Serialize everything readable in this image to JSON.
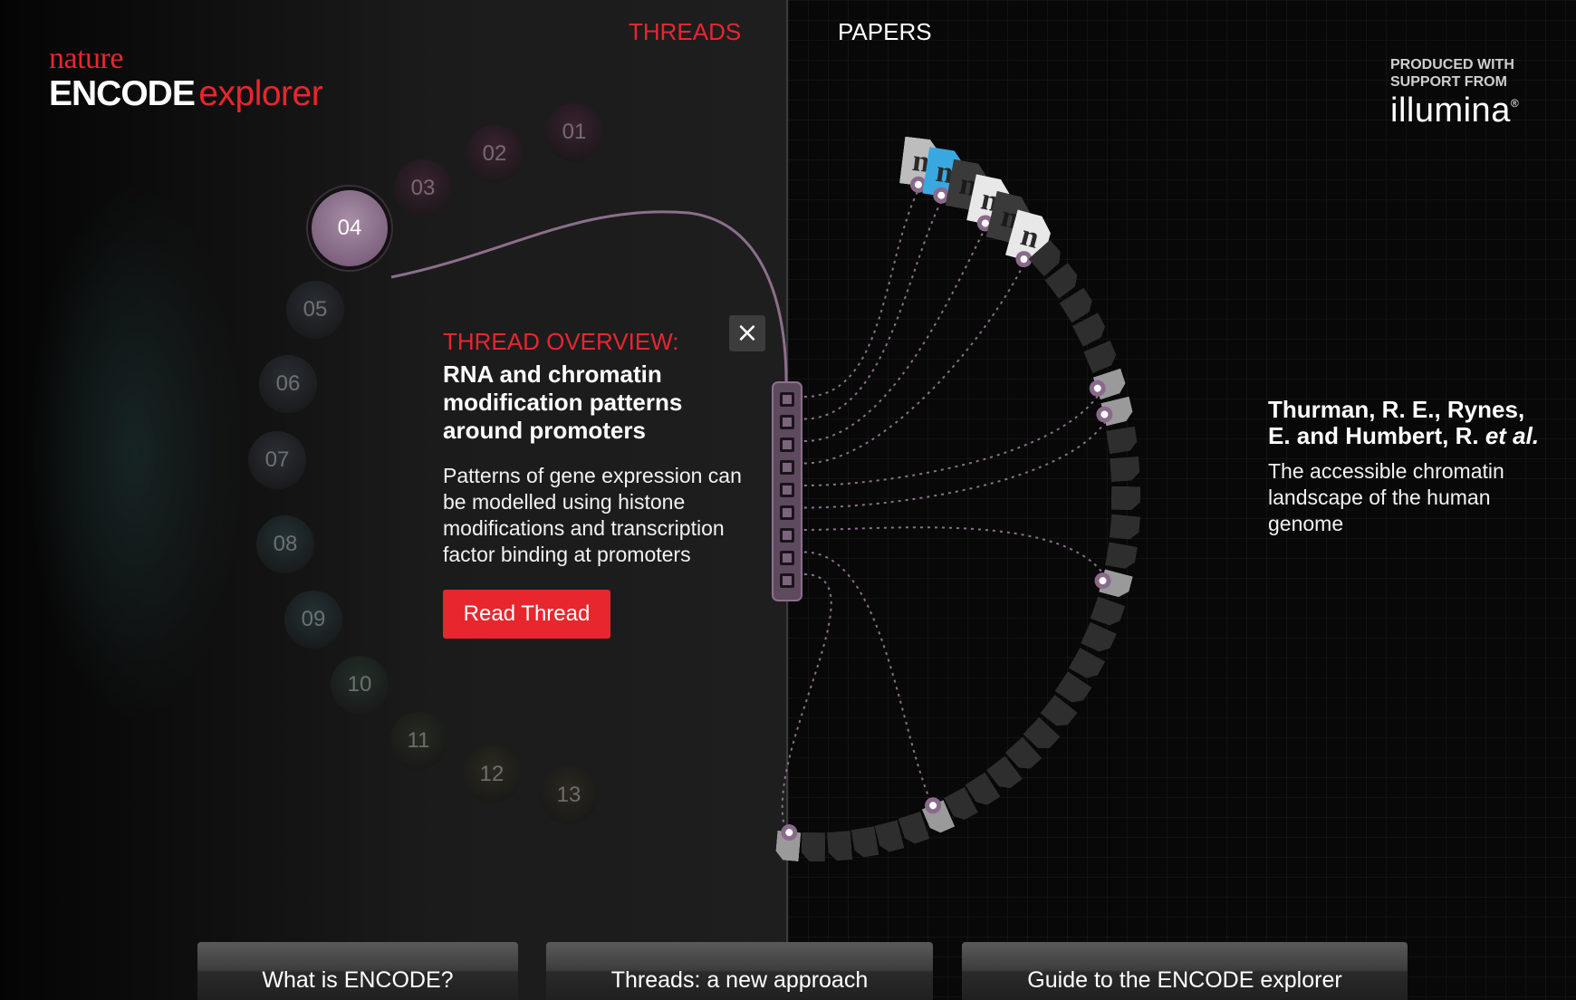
{
  "brand": {
    "publisher": "nature",
    "product_bold": "ENCODE",
    "product_light": "explorer"
  },
  "nav": {
    "threads_label": "THREADS",
    "papers_label": "PAPERS"
  },
  "sponsor": {
    "line1": "PRODUCED WITH",
    "line2": "SUPPORT FROM",
    "brand": "illumina",
    "trademark": "®"
  },
  "threads": {
    "items": [
      "01",
      "02",
      "03",
      "04",
      "05",
      "06",
      "07",
      "08",
      "09",
      "10",
      "11",
      "12",
      "13"
    ],
    "active": "04",
    "colors": [
      "#3b2230",
      "#3b2230",
      "#3b2230",
      "#a88ea6",
      "#2a2f35",
      "#2a2f35",
      "#2a2f35",
      "#243236",
      "#243236",
      "#24302a",
      "#262a20",
      "#2b2a20",
      "#2b2820"
    ]
  },
  "overview": {
    "heading": "THREAD OVERVIEW:",
    "title": "RNA and chromatin modification patterns around promoters",
    "description": "Patterns of gene expression can be modelled using histone modifications and transcription factor binding at promoters",
    "read_button": "Read Thread",
    "close_icon": "×"
  },
  "selected_paper": {
    "authors_main": "Thurman, R. E., Rynes, E. and Humbert, R. ",
    "authors_etal": "et al.",
    "title": "The accessible chromatin landscape of the human genome"
  },
  "papers": {
    "count": 36,
    "logo_letter": "n",
    "highlight_color": "#3aa8e0",
    "linked_color": "#8a6a8a"
  },
  "footer": {
    "tabs": [
      "What is ENCODE?",
      "Threads: a new approach",
      "Guide to the ENCODE explorer"
    ]
  }
}
